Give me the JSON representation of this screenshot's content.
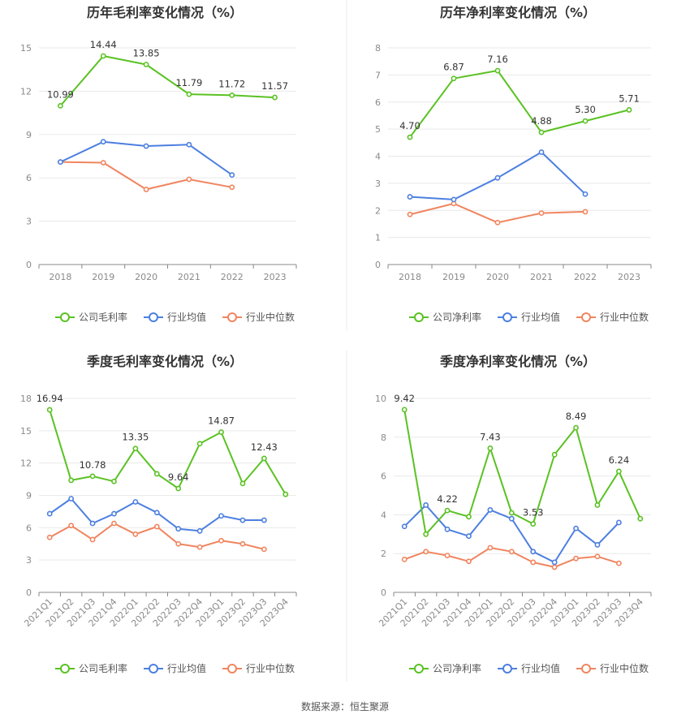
{
  "source": "数据来源：恒生聚源",
  "colors": {
    "company": "#5ac223",
    "avg": "#4c7fe0",
    "median": "#f0855f"
  },
  "chart_data": [
    {
      "type": "line",
      "title": "历年毛利率变化情况（%）",
      "categories": [
        "2018",
        "2019",
        "2020",
        "2021",
        "2022",
        "2023"
      ],
      "ylim": [
        0,
        15
      ],
      "yticks": [
        0,
        3,
        6,
        9,
        12,
        15
      ],
      "grid": true,
      "legend": "bottom",
      "series": [
        {
          "name": "公司毛利率",
          "key": "company",
          "values": [
            10.99,
            14.44,
            13.85,
            11.79,
            11.72,
            11.57
          ],
          "labels": [
            "10.99",
            "14.44",
            "13.85",
            "11.79",
            "11.72",
            "11.57"
          ]
        },
        {
          "name": "行业均值",
          "key": "avg",
          "values": [
            7.1,
            8.5,
            8.2,
            8.3,
            6.2,
            null
          ]
        },
        {
          "name": "行业中位数",
          "key": "median",
          "values": [
            7.1,
            7.05,
            5.2,
            5.9,
            5.35,
            null
          ]
        }
      ]
    },
    {
      "type": "line",
      "title": "历年净利率变化情况（%）",
      "categories": [
        "2018",
        "2019",
        "2020",
        "2021",
        "2022",
        "2023"
      ],
      "ylim": [
        0,
        8
      ],
      "yticks": [
        0,
        1,
        2,
        3,
        4,
        5,
        6,
        7,
        8
      ],
      "grid": true,
      "legend": "bottom",
      "series": [
        {
          "name": "公司净利率",
          "key": "company",
          "values": [
            4.7,
            6.87,
            7.16,
            4.88,
            5.3,
            5.71
          ],
          "labels": [
            "4.70",
            "6.87",
            "7.16",
            "4.88",
            "5.30",
            "5.71"
          ]
        },
        {
          "name": "行业均值",
          "key": "avg",
          "values": [
            2.5,
            2.4,
            3.2,
            4.15,
            2.6,
            null
          ]
        },
        {
          "name": "行业中位数",
          "key": "median",
          "values": [
            1.85,
            2.25,
            1.55,
            1.9,
            1.95,
            null
          ]
        }
      ]
    },
    {
      "type": "line",
      "title": "季度毛利率变化情况（%）",
      "categories": [
        "2021Q1",
        "2021Q2",
        "2021Q3",
        "2021Q4",
        "2022Q1",
        "2022Q2",
        "2022Q3",
        "2022Q4",
        "2023Q1",
        "2023Q2",
        "2023Q3",
        "2023Q4"
      ],
      "ylim": [
        0,
        18
      ],
      "yticks": [
        0,
        3,
        6,
        9,
        12,
        15,
        18
      ],
      "grid": true,
      "legend": "bottom",
      "series": [
        {
          "name": "公司毛利率",
          "key": "company",
          "values": [
            16.94,
            10.4,
            10.78,
            10.3,
            13.35,
            11.0,
            9.64,
            13.8,
            14.87,
            10.1,
            12.43,
            9.1
          ],
          "labels": [
            "16.94",
            null,
            "10.78",
            null,
            "13.35",
            null,
            "9.64",
            null,
            "14.87",
            null,
            "12.43",
            null
          ]
        },
        {
          "name": "行业均值",
          "key": "avg",
          "values": [
            7.3,
            8.7,
            6.4,
            7.3,
            8.4,
            7.4,
            5.9,
            5.7,
            7.1,
            6.7,
            6.7,
            null
          ]
        },
        {
          "name": "行业中位数",
          "key": "median",
          "values": [
            5.1,
            6.2,
            4.9,
            6.4,
            5.4,
            6.1,
            4.5,
            4.2,
            4.8,
            4.5,
            4.0,
            null
          ]
        }
      ]
    },
    {
      "type": "line",
      "title": "季度净利率变化情况（%）",
      "categories": [
        "2021Q1",
        "2021Q2",
        "2021Q3",
        "2021Q4",
        "2022Q1",
        "2022Q2",
        "2022Q3",
        "2022Q4",
        "2023Q1",
        "2023Q2",
        "2023Q3",
        "2023Q4"
      ],
      "ylim": [
        0,
        10
      ],
      "yticks": [
        0,
        2,
        4,
        6,
        8,
        10
      ],
      "grid": true,
      "legend": "bottom",
      "series": [
        {
          "name": "公司净利率",
          "key": "company",
          "values": [
            9.42,
            3.0,
            4.22,
            3.9,
            7.43,
            4.1,
            3.53,
            7.1,
            8.49,
            4.5,
            6.24,
            3.8
          ],
          "labels": [
            "9.42",
            null,
            "4.22",
            null,
            "7.43",
            null,
            "3.53",
            null,
            "8.49",
            null,
            "6.24",
            null
          ]
        },
        {
          "name": "行业均值",
          "key": "avg",
          "values": [
            3.4,
            4.5,
            3.25,
            2.9,
            4.25,
            3.8,
            2.1,
            1.55,
            3.3,
            2.45,
            3.6,
            null
          ]
        },
        {
          "name": "行业中位数",
          "key": "median",
          "values": [
            1.7,
            2.1,
            1.9,
            1.6,
            2.3,
            2.1,
            1.55,
            1.3,
            1.75,
            1.85,
            1.5,
            null
          ]
        }
      ]
    }
  ]
}
